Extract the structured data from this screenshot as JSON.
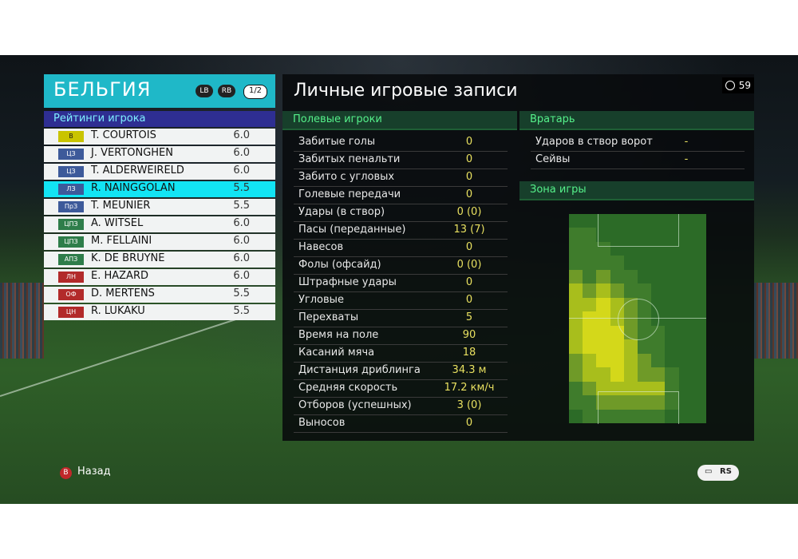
{
  "team": {
    "name": "БЕЛЬГИЯ",
    "lb": "LB",
    "rb": "RB",
    "page": "1/2"
  },
  "ratings_label": "Рейтинги игрока",
  "players": [
    {
      "pos": "В",
      "name": "T. COURTOIS",
      "rating": "6.0",
      "pos_color": "#c9c400",
      "pos_text": "#1b1b1b"
    },
    {
      "pos": "ЦЗ",
      "name": "J. VERTONGHEN",
      "rating": "6.0",
      "pos_color": "#3d5a9a",
      "pos_text": "#ffffff"
    },
    {
      "pos": "ЦЗ",
      "name": "T. ALDERWEIRELD",
      "rating": "6.0",
      "pos_color": "#3d5a9a",
      "pos_text": "#ffffff"
    },
    {
      "pos": "ЛЗ",
      "name": "R. NAINGGOLAN",
      "rating": "5.5",
      "pos_color": "#3d5a9a",
      "pos_text": "#ffffff",
      "selected": true
    },
    {
      "pos": "ПрЗ",
      "name": "T. MEUNIER",
      "rating": "5.5",
      "pos_color": "#3d5a9a",
      "pos_text": "#ffffff"
    },
    {
      "pos": "ЦПЗ",
      "name": "A. WITSEL",
      "rating": "6.0",
      "pos_color": "#2e7d4a",
      "pos_text": "#ffffff"
    },
    {
      "pos": "ЦПЗ",
      "name": "M. FELLAINI",
      "rating": "6.0",
      "pos_color": "#2e7d4a",
      "pos_text": "#ffffff"
    },
    {
      "pos": "АПЗ",
      "name": "K. DE BRUYNE",
      "rating": "6.0",
      "pos_color": "#2e7d4a",
      "pos_text": "#ffffff"
    },
    {
      "pos": "ЛН",
      "name": "E. HAZARD",
      "rating": "6.0",
      "pos_color": "#b22a2a",
      "pos_text": "#ffffff"
    },
    {
      "pos": "ОФ",
      "name": "D. MERTENS",
      "rating": "5.5",
      "pos_color": "#b22a2a",
      "pos_text": "#ffffff"
    },
    {
      "pos": "ЦН",
      "name": "R. LUKAKU",
      "rating": "5.5",
      "pos_color": "#b22a2a",
      "pos_text": "#ffffff"
    }
  ],
  "main_title": "Личные игровые записи",
  "clock_value": "59",
  "field_players_label": "Полевые игроки",
  "field_stats": [
    {
      "label": "Забитые голы",
      "value": "0"
    },
    {
      "label": "Забитых пенальти",
      "value": "0"
    },
    {
      "label": "Забито с угловых",
      "value": "0"
    },
    {
      "label": "Голевые передачи",
      "value": "0"
    },
    {
      "label": "Удары (в створ)",
      "value": "0 (0)"
    },
    {
      "label": "Пасы (переданные)",
      "value": "13 (7)"
    },
    {
      "label": "Навесов",
      "value": "0"
    },
    {
      "label": "Фолы (офсайд)",
      "value": "0 (0)"
    },
    {
      "label": "Штрафные удары",
      "value": "0"
    },
    {
      "label": "Угловые",
      "value": "0"
    },
    {
      "label": "Перехваты",
      "value": "5"
    },
    {
      "label": "Время на поле",
      "value": "90"
    },
    {
      "label": "Касаний мяча",
      "value": "18"
    },
    {
      "label": "Дистанция дриблинга",
      "value": "34.3 м"
    },
    {
      "label": "Средняя скорость",
      "value": "17.2 км/ч"
    },
    {
      "label": "Отборов (успешных)",
      "value": "3 (0)"
    },
    {
      "label": "Выносов",
      "value": "0"
    }
  ],
  "goalkeeper_label": "Вратарь",
  "goalkeeper_stats": [
    {
      "label": "Ударов в створ ворот",
      "value": "-"
    },
    {
      "label": "Сейвы",
      "value": "-"
    }
  ],
  "zone_label": "Зона игры",
  "heatmap": {
    "columns": 10,
    "rows": 15,
    "levels": [
      0,
      0,
      0,
      0,
      0,
      0,
      0,
      0,
      0,
      0,
      1,
      1,
      0,
      0,
      0,
      0,
      0,
      0,
      0,
      0,
      1,
      1,
      1,
      0,
      0,
      0,
      0,
      0,
      0,
      0,
      1,
      1,
      1,
      1,
      0,
      0,
      0,
      0,
      0,
      0,
      2,
      1,
      2,
      1,
      1,
      0,
      0,
      0,
      0,
      0,
      3,
      2,
      3,
      2,
      1,
      1,
      0,
      0,
      0,
      0,
      3,
      3,
      4,
      3,
      2,
      1,
      0,
      0,
      0,
      0,
      3,
      4,
      4,
      3,
      2,
      1,
      0,
      0,
      0,
      0,
      3,
      4,
      4,
      4,
      2,
      1,
      1,
      0,
      0,
      0,
      3,
      4,
      4,
      4,
      3,
      1,
      1,
      0,
      0,
      0,
      2,
      3,
      4,
      4,
      3,
      2,
      1,
      0,
      0,
      0,
      2,
      3,
      3,
      4,
      3,
      2,
      2,
      1,
      0,
      0,
      1,
      2,
      3,
      3,
      3,
      3,
      3,
      1,
      0,
      0,
      1,
      1,
      2,
      2,
      2,
      2,
      2,
      1,
      0,
      0,
      0,
      1,
      1,
      1,
      1,
      1,
      1,
      0,
      0,
      0
    ],
    "colors": [
      "#2c6b27",
      "#3f7c2c",
      "#6f9a28",
      "#a8be1c",
      "#d4d81a"
    ]
  },
  "back_button": {
    "key": "B",
    "label": "Назад"
  },
  "rs_button": {
    "chat": "▭",
    "rs": "RS"
  }
}
